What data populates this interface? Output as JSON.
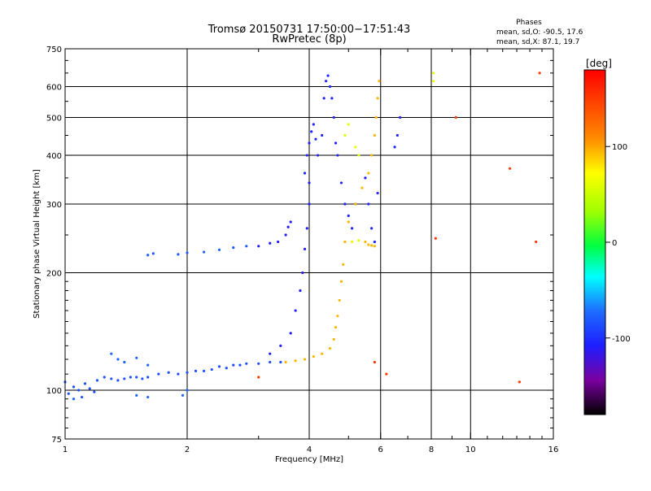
{
  "header": {
    "title_line1": "Tromsø 20150731 17:50:00−17:51:43",
    "title_line2": "RwPretec (8p)"
  },
  "phases": {
    "title": "Phases",
    "line_o": "mean, sd,O: -90.5, 17.6",
    "line_x": "mean, sd,X:  87.1, 19.7"
  },
  "colorbar": {
    "unit_label": "[deg]",
    "ticks": [
      "100",
      "0",
      "-100"
    ],
    "tick_values": [
      100,
      0,
      -100
    ],
    "range": [
      -180,
      180
    ]
  },
  "chart_data": {
    "type": "scatter",
    "xlabel": "Frequency [MHz]",
    "ylabel": "Stationary phase Virtual Height [km]",
    "xscale": "log",
    "yscale": "log",
    "xlim": [
      1,
      16
    ],
    "ylim": [
      75,
      750
    ],
    "x_ticks": [
      1,
      2,
      4,
      6,
      8,
      10,
      16
    ],
    "x_tick_labels": [
      "1",
      "2",
      "4",
      "6",
      "8",
      "10",
      "16"
    ],
    "y_ticks": [
      75,
      100,
      200,
      300,
      400,
      500,
      600,
      750
    ],
    "y_tick_labels": [
      "75",
      "100",
      "200",
      "300",
      "400",
      "500",
      "600",
      "750"
    ],
    "grid": true,
    "legend": "colorbar-right",
    "series": [
      {
        "points": [
          [
            1.0,
            105
          ],
          [
            1.02,
            98
          ],
          [
            1.05,
            102
          ],
          [
            1.08,
            100
          ],
          [
            1.1,
            96
          ],
          [
            1.12,
            104
          ],
          [
            1.15,
            101
          ],
          [
            1.18,
            99
          ],
          [
            1.2,
            106
          ],
          [
            1.25,
            108
          ],
          [
            1.3,
            107
          ],
          [
            1.35,
            106
          ],
          [
            1.4,
            107
          ],
          [
            1.45,
            108
          ],
          [
            1.5,
            108
          ],
          [
            1.55,
            107
          ],
          [
            1.6,
            108
          ],
          [
            1.7,
            110
          ],
          [
            1.8,
            111
          ],
          [
            1.9,
            110
          ],
          [
            2.0,
            111
          ],
          [
            2.1,
            112
          ],
          [
            2.2,
            112
          ],
          [
            2.3,
            113
          ],
          [
            2.4,
            115
          ],
          [
            2.5,
            114
          ],
          [
            2.6,
            116
          ],
          [
            2.7,
            116
          ],
          [
            2.8,
            117
          ],
          [
            3.0,
            117
          ],
          [
            3.2,
            118
          ],
          [
            3.4,
            118
          ]
        ],
        "phase": -85
      },
      {
        "points": [
          [
            1.3,
            124
          ],
          [
            1.35,
            120
          ],
          [
            1.4,
            118
          ],
          [
            1.5,
            121
          ],
          [
            1.6,
            116
          ],
          [
            1.05,
            95
          ],
          [
            1.5,
            97
          ],
          [
            1.6,
            96
          ],
          [
            1.95,
            97
          ],
          [
            2.0,
            100
          ]
        ],
        "phase": -75
      },
      {
        "points": [
          [
            1.6,
            222
          ],
          [
            1.65,
            224
          ],
          [
            1.9,
            223
          ],
          [
            2.0,
            225
          ],
          [
            2.2,
            226
          ],
          [
            2.4,
            229
          ],
          [
            2.6,
            232
          ],
          [
            2.8,
            234
          ]
        ],
        "phase": -80
      },
      {
        "points": [
          [
            3.0,
            234
          ],
          [
            3.2,
            238
          ],
          [
            3.35,
            240
          ],
          [
            3.5,
            250
          ],
          [
            3.55,
            262
          ],
          [
            3.6,
            270
          ]
        ],
        "phase": -110
      },
      {
        "points": [
          [
            3.2,
            124
          ],
          [
            3.4,
            130
          ],
          [
            3.6,
            140
          ],
          [
            3.7,
            160
          ],
          [
            3.8,
            180
          ],
          [
            3.85,
            200
          ],
          [
            3.9,
            230
          ],
          [
            3.95,
            260
          ],
          [
            4.0,
            300
          ],
          [
            4.0,
            340
          ]
        ],
        "phase": -110
      },
      {
        "points": [
          [
            3.9,
            360
          ],
          [
            3.95,
            400
          ],
          [
            4.0,
            430
          ],
          [
            4.05,
            460
          ],
          [
            4.1,
            480
          ],
          [
            4.15,
            440
          ],
          [
            4.2,
            400
          ],
          [
            4.3,
            450
          ],
          [
            4.35,
            560
          ],
          [
            4.4,
            620
          ],
          [
            4.45,
            640
          ],
          [
            4.5,
            600
          ],
          [
            4.55,
            560
          ],
          [
            4.6,
            500
          ],
          [
            4.65,
            430
          ],
          [
            4.7,
            400
          ],
          [
            4.8,
            340
          ],
          [
            4.9,
            300
          ],
          [
            5.0,
            280
          ],
          [
            5.1,
            260
          ],
          [
            5.2,
            300
          ],
          [
            5.5,
            350
          ],
          [
            5.6,
            300
          ],
          [
            5.7,
            260
          ],
          [
            5.8,
            240
          ],
          [
            5.9,
            320
          ],
          [
            6.5,
            420
          ],
          [
            6.6,
            450
          ],
          [
            6.7,
            500
          ]
        ],
        "phase": -105
      },
      {
        "points": [
          [
            3.5,
            118
          ],
          [
            3.7,
            119
          ],
          [
            3.9,
            120
          ],
          [
            4.1,
            122
          ],
          [
            4.3,
            124
          ],
          [
            4.5,
            128
          ],
          [
            4.6,
            135
          ],
          [
            4.65,
            145
          ],
          [
            4.7,
            155
          ],
          [
            4.75,
            170
          ],
          [
            4.8,
            190
          ],
          [
            4.85,
            210
          ],
          [
            4.9,
            240
          ],
          [
            5.0,
            270
          ],
          [
            5.2,
            300
          ],
          [
            5.4,
            330
          ],
          [
            5.6,
            360
          ],
          [
            5.7,
            400
          ],
          [
            5.8,
            450
          ],
          [
            5.85,
            500
          ],
          [
            5.9,
            560
          ],
          [
            5.95,
            620
          ],
          [
            5.5,
            240
          ],
          [
            5.6,
            236
          ],
          [
            5.7,
            235
          ],
          [
            5.8,
            234
          ]
        ],
        "phase": 95
      },
      {
        "points": [
          [
            4.9,
            450
          ],
          [
            5.0,
            480
          ],
          [
            5.2,
            420
          ],
          [
            5.3,
            400
          ],
          [
            8.1,
            650
          ],
          [
            8.1,
            620
          ],
          [
            5.1,
            240
          ],
          [
            5.3,
            242
          ]
        ],
        "phase": 60
      },
      {
        "points": [
          [
            3.0,
            108
          ],
          [
            5.8,
            118
          ],
          [
            6.2,
            110
          ],
          [
            8.2,
            245
          ],
          [
            9.2,
            500
          ],
          [
            13.2,
            105
          ],
          [
            14.8,
            650
          ],
          [
            12.5,
            370
          ],
          [
            14.5,
            240
          ]
        ],
        "phase": 150
      }
    ]
  }
}
